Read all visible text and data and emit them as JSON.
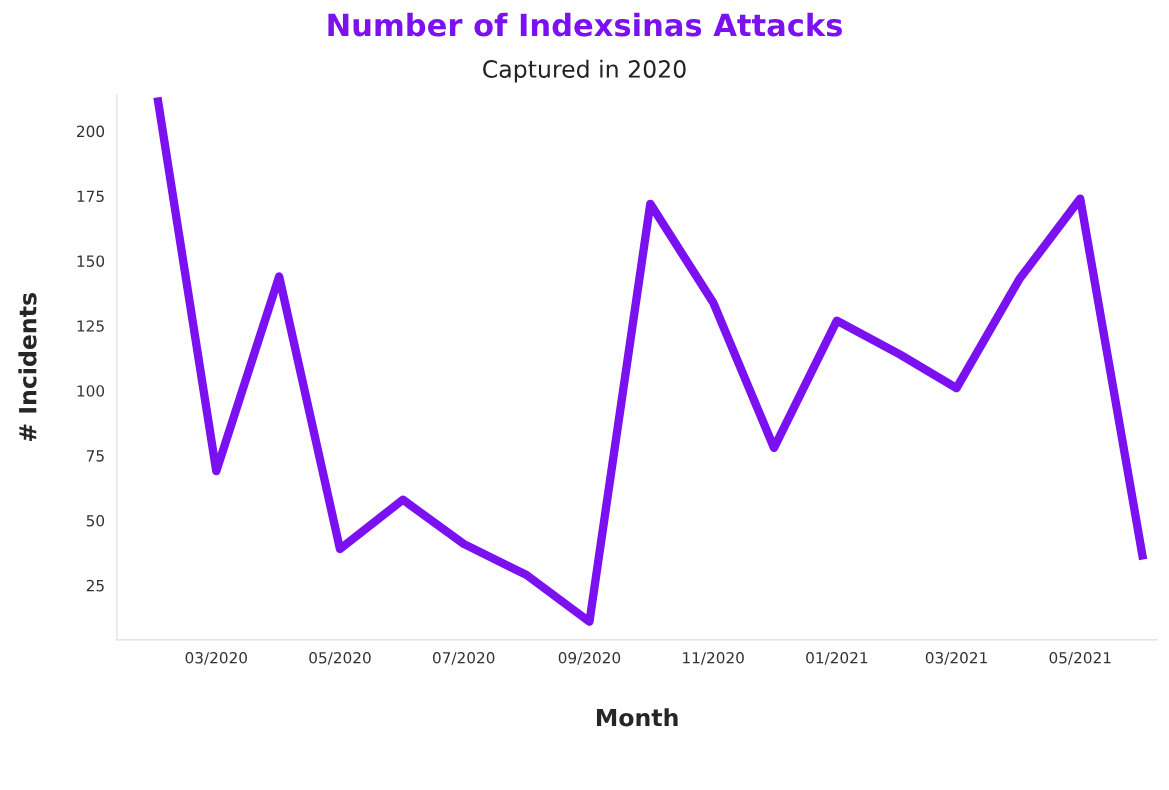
{
  "chart_data": {
    "type": "line",
    "title": "Number of Indexsinas Attacks",
    "subtitle": "Captured in 2020",
    "xlabel": "Month",
    "ylabel": "# Incidents",
    "x": [
      "2020-02",
      "2020-03",
      "2020-04",
      "2020-05",
      "2020-06",
      "2020-07",
      "2020-08",
      "2020-09",
      "2020-10",
      "2020-11",
      "2020-12",
      "2021-01",
      "2021-02",
      "2021-03",
      "2021-04",
      "2021-05",
      "2021-06"
    ],
    "series": [
      {
        "color": "#7b10f0",
        "values": [
          213,
          69,
          144,
          39,
          58,
          41,
          29,
          11,
          172,
          134,
          78,
          127,
          114,
          101,
          143,
          174,
          35
        ]
      }
    ],
    "xlim": [
      "2020-01-12",
      "2021-06-08"
    ],
    "ylim": [
      4,
      214
    ],
    "xticks": [
      {
        "value": "2020-03",
        "label": "03/2020"
      },
      {
        "value": "2020-05",
        "label": "05/2020"
      },
      {
        "value": "2020-07",
        "label": "07/2020"
      },
      {
        "value": "2020-09",
        "label": "09/2020"
      },
      {
        "value": "2020-11",
        "label": "11/2020"
      },
      {
        "value": "2021-01",
        "label": "01/2021"
      },
      {
        "value": "2021-03",
        "label": "03/2021"
      },
      {
        "value": "2021-05",
        "label": "05/2021"
      }
    ],
    "yticks": [
      25,
      50,
      75,
      100,
      125,
      150,
      175,
      200
    ],
    "grid": false,
    "marker": "none",
    "line_style": "solid"
  }
}
